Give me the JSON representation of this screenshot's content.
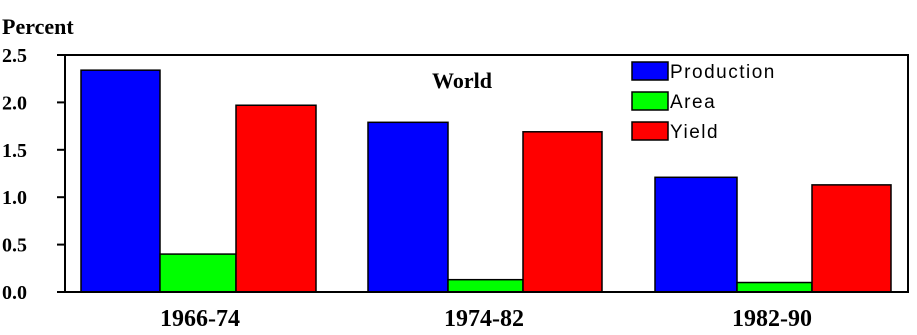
{
  "chart_data": {
    "type": "bar",
    "ylabel": "Percent",
    "title": "World",
    "categories": [
      "1966-74",
      "1974-82",
      "1982-90"
    ],
    "series": [
      {
        "name": "Production",
        "values": [
          2.34,
          1.79,
          1.21
        ],
        "color": "#0000ff"
      },
      {
        "name": "Area",
        "values": [
          0.4,
          0.13,
          0.1
        ],
        "color": "#00ff00"
      },
      {
        "name": "Yield",
        "values": [
          1.97,
          1.69,
          1.13
        ],
        "color": "#ff0000"
      }
    ],
    "ylim": [
      0,
      2.5
    ],
    "yticks": [
      "0.0",
      "0.5",
      "1.0",
      "1.5",
      "2.0",
      "2.5"
    ],
    "legend_position": "top-right",
    "grid": false
  }
}
